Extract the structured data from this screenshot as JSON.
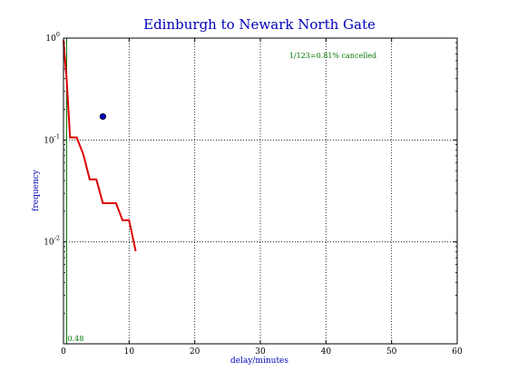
{
  "chart_data": {
    "type": "line",
    "title": "Edinburgh to Newark North Gate",
    "xlabel": "delay/minutes",
    "ylabel": "frequency",
    "xlim": [
      0,
      60
    ],
    "ylim": [
      0.001,
      1
    ],
    "yscale": "log",
    "grid": true,
    "x_ticks": [
      0,
      10,
      20,
      30,
      40,
      50,
      60
    ],
    "x_tick_labels": [
      "0",
      "10",
      "20",
      "30",
      "40",
      "50",
      "60"
    ],
    "y_ticks": [
      0.01,
      0.1,
      1
    ],
    "y_tick_labels": [
      {
        "base": "10",
        "exp": "-2"
      },
      {
        "base": "10",
        "exp": "-1"
      },
      {
        "base": "10",
        "exp": "0"
      }
    ],
    "annotation": "1/123=0.81% cancelled",
    "median_label": "0.48",
    "median_x": 0.48,
    "series": [
      {
        "color": "#dd0000",
        "x": [
          0,
          0.5,
          1,
          2,
          3,
          4,
          5,
          6,
          7,
          8,
          9,
          10,
          11
        ],
        "y": [
          0.95,
          0.38,
          0.106,
          0.106,
          0.073,
          0.041,
          0.041,
          0.024,
          0.024,
          0.024,
          0.0163,
          0.0163,
          0.0081
        ]
      }
    ],
    "point": {
      "x": 6,
      "y": 0.17,
      "color": "#0000cc"
    },
    "median_color": "#007700",
    "title_color": "#0000bb",
    "label_color": "#0000bb",
    "annotation_color": "#007700"
  }
}
